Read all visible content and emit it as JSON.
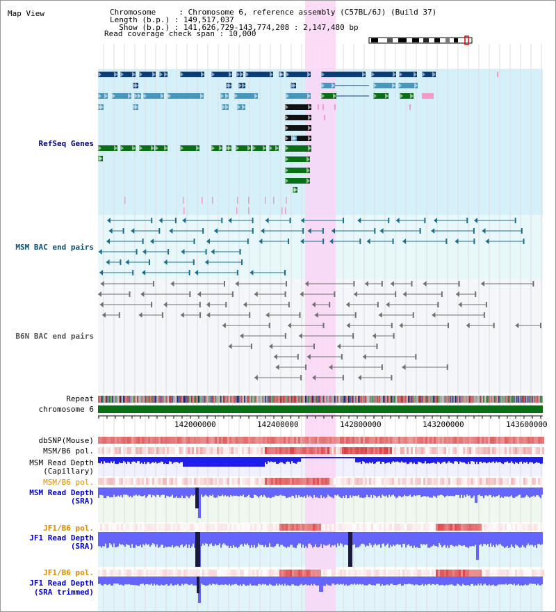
{
  "header": {
    "title": "Map View",
    "info_lines": [
      "Chromosome     : Chromosome 6, reference assembly (C57BL/6J) (Build 37)",
      "Length (b.p.) : 149,517,037",
      "  Show (b.p.) : 141,626,729-143,774,208 : 2,147,480 bp",
      "Read coverage check span : 10,000"
    ]
  },
  "tracks": {
    "refseq_genes": "RefSeq Genes",
    "msm_bac": "MSM BAC end pairs",
    "b6n_bac": "B6N BAC end pairs",
    "repeat": "Repeat",
    "chromosome": "chromosome 6",
    "dbsnp": "dbSNP(Mouse)",
    "msm_b6_pol_1": "MSM/B6 pol.",
    "msm_read_depth_cap_1": "MSM Read Depth",
    "msm_read_depth_cap_2": "(Capillary)",
    "msm_b6_pol_2": "MSM/B6 pol.",
    "msm_read_depth_sra_1": "MSM Read Depth",
    "msm_read_depth_sra_2": "(SRA)",
    "jf1_b6_pol_1": "JF1/B6 pol.",
    "jf1_read_depth_sra_1": "JF1 Read Depth",
    "jf1_read_depth_sra_2": "(SRA)",
    "jf1_b6_pol_2": "JF1/B6 pol.",
    "jf1_read_depth_trim_1": "JF1 Read Depth",
    "jf1_read_depth_trim_2": "(SRA trimmed)"
  },
  "ruler": {
    "ticks": [
      "142000000",
      "142400000",
      "142800000",
      "143200000",
      "143600000"
    ]
  },
  "colors": {
    "refseq_bg": "#d6f0fa",
    "highlight": "#f9d6f4",
    "gene_dark_blue": "#0a3c78",
    "gene_teal": "#4796bd",
    "gene_green": "#0a6e14",
    "gene_pink": "#f59ac8",
    "msm_bac": "#1a6e8c",
    "b6n_bac": "#707070",
    "label_navy": "#000080",
    "label_teal": "#0a5078",
    "label_orange": "#e08a00",
    "label_blue": "#0000c8",
    "chromosome": "#0a6e14",
    "depth_capillary": "#1e1ee6",
    "depth_sra": "#6464ff"
  }
}
